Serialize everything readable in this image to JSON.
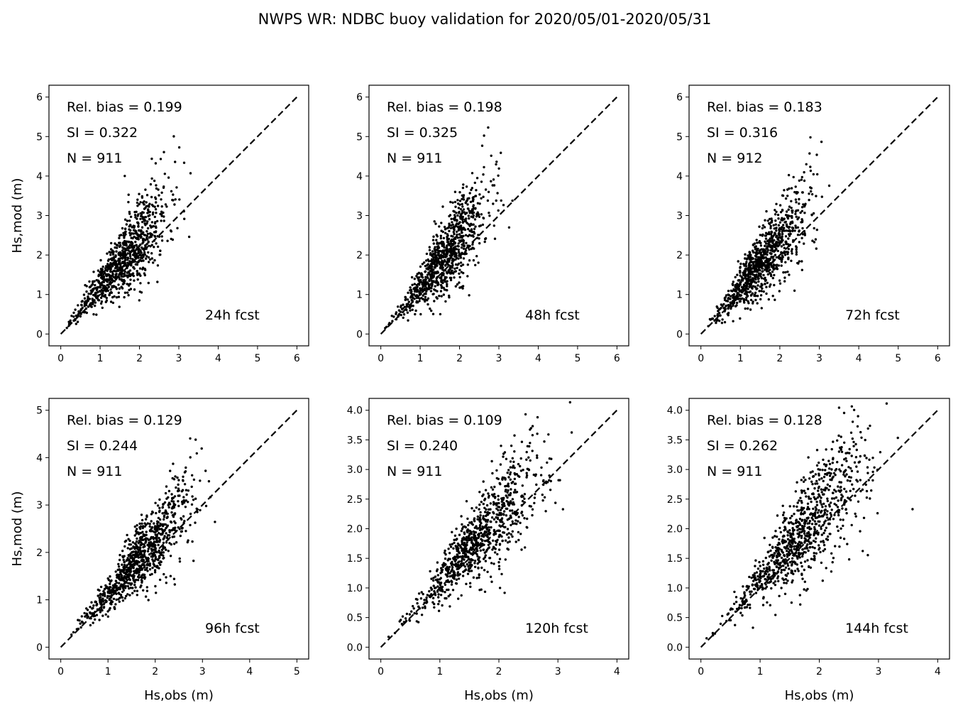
{
  "suptitle": "NWPS WR: NDBC buoy validation for 2020/05/01-2020/05/31",
  "colors": {
    "points": "#000000",
    "line": "#000000",
    "frame": "#000000"
  },
  "chart_data": [
    {
      "type": "scatter",
      "xlabel": "",
      "ylabel": "Hs,mod (m)",
      "xlim": [
        -0.3,
        6.3
      ],
      "ylim": [
        -0.3,
        6.3
      ],
      "xticks": [
        "0",
        "1",
        "2",
        "3",
        "4",
        "5",
        "6"
      ],
      "yticks": [
        "0",
        "1",
        "2",
        "3",
        "4",
        "5",
        "6"
      ],
      "annotations": {
        "bias": "Rel. bias =  0.199",
        "si": "SI =  0.322",
        "n": "N = 911",
        "lead": "24h fcst"
      },
      "one_to_one": [
        0,
        6
      ],
      "cloud": {
        "n": 911,
        "center_x": 1.6,
        "spread_x": 0.55,
        "bias": 0.199,
        "si": 0.322,
        "xmax": 3.7,
        "seed": 11
      }
    },
    {
      "type": "scatter",
      "xlabel": "",
      "ylabel": "",
      "xlim": [
        -0.3,
        6.3
      ],
      "ylim": [
        -0.3,
        6.3
      ],
      "xticks": [
        "0",
        "1",
        "2",
        "3",
        "4",
        "5",
        "6"
      ],
      "yticks": [
        "0",
        "1",
        "2",
        "3",
        "4",
        "5",
        "6"
      ],
      "annotations": {
        "bias": "Rel. bias =  0.198",
        "si": "SI =  0.325",
        "n": "N = 911",
        "lead": "48h fcst"
      },
      "one_to_one": [
        0,
        6
      ],
      "cloud": {
        "n": 911,
        "center_x": 1.6,
        "spread_x": 0.55,
        "bias": 0.198,
        "si": 0.325,
        "xmax": 3.7,
        "seed": 23
      }
    },
    {
      "type": "scatter",
      "xlabel": "",
      "ylabel": "",
      "xlim": [
        -0.3,
        6.3
      ],
      "ylim": [
        -0.3,
        6.3
      ],
      "xticks": [
        "0",
        "1",
        "2",
        "3",
        "4",
        "5",
        "6"
      ],
      "yticks": [
        "0",
        "1",
        "2",
        "3",
        "4",
        "5",
        "6"
      ],
      "annotations": {
        "bias": "Rel. bias =  0.183",
        "si": "SI =  0.316",
        "n": "N = 912",
        "lead": "72h fcst"
      },
      "one_to_one": [
        0,
        6
      ],
      "cloud": {
        "n": 912,
        "center_x": 1.6,
        "spread_x": 0.55,
        "bias": 0.183,
        "si": 0.316,
        "xmax": 3.8,
        "seed": 37
      }
    },
    {
      "type": "scatter",
      "xlabel": "Hs,obs (m)",
      "ylabel": "Hs,mod (m)",
      "xlim": [
        -0.25,
        5.25
      ],
      "ylim": [
        -0.25,
        5.25
      ],
      "xticks": [
        "0",
        "1",
        "2",
        "3",
        "4",
        "5"
      ],
      "yticks": [
        "0",
        "1",
        "2",
        "3",
        "4",
        "5"
      ],
      "annotations": {
        "bias": "Rel. bias =  0.129",
        "si": "SI =  0.244",
        "n": "N = 911",
        "lead": "96h fcst"
      },
      "one_to_one": [
        0,
        5
      ],
      "cloud": {
        "n": 911,
        "center_x": 1.7,
        "spread_x": 0.55,
        "bias": 0.129,
        "si": 0.244,
        "xmax": 3.7,
        "seed": 41
      }
    },
    {
      "type": "scatter",
      "xlabel": "Hs,obs (m)",
      "ylabel": "",
      "xlim": [
        -0.2,
        4.2
      ],
      "ylim": [
        -0.2,
        4.2
      ],
      "xticks": [
        "0",
        "1",
        "2",
        "3",
        "4"
      ],
      "yticks": [
        "0.0",
        "0.5",
        "1.0",
        "1.5",
        "2.0",
        "2.5",
        "3.0",
        "3.5",
        "4.0"
      ],
      "annotations": {
        "bias": "Rel. bias =  0.109",
        "si": "SI =  0.240",
        "n": "N = 911",
        "lead": "120h fcst"
      },
      "one_to_one": [
        0,
        4
      ],
      "cloud": {
        "n": 911,
        "center_x": 1.7,
        "spread_x": 0.55,
        "bias": 0.109,
        "si": 0.24,
        "xmax": 3.7,
        "seed": 53
      }
    },
    {
      "type": "scatter",
      "xlabel": "Hs,obs (m)",
      "ylabel": "",
      "xlim": [
        -0.2,
        4.2
      ],
      "ylim": [
        -0.2,
        4.2
      ],
      "xticks": [
        "0",
        "1",
        "2",
        "3",
        "4"
      ],
      "yticks": [
        "0.0",
        "0.5",
        "1.0",
        "1.5",
        "2.0",
        "2.5",
        "3.0",
        "3.5",
        "4.0"
      ],
      "annotations": {
        "bias": "Rel. bias =  0.128",
        "si": "SI =  0.262",
        "n": "N = 911",
        "lead": "144h fcst"
      },
      "one_to_one": [
        0,
        4
      ],
      "cloud": {
        "n": 911,
        "center_x": 1.7,
        "spread_x": 0.55,
        "bias": 0.128,
        "si": 0.262,
        "xmax": 3.7,
        "seed": 67
      }
    }
  ]
}
